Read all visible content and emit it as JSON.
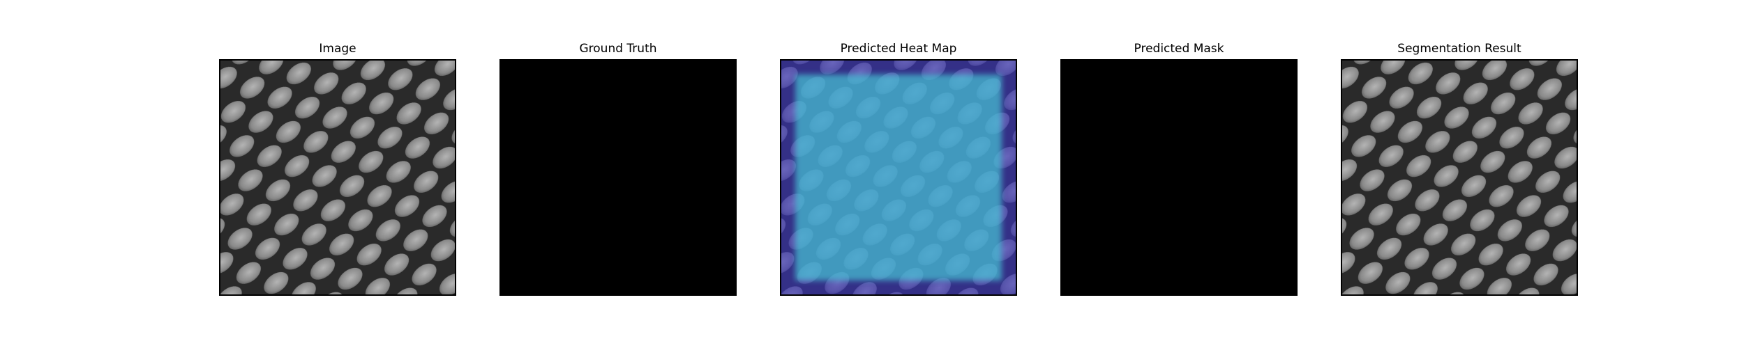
{
  "panels": [
    {
      "title": "Image",
      "content": "mesh-texture-grayscale"
    },
    {
      "title": "Ground Truth",
      "content": "empty-mask"
    },
    {
      "title": "Predicted Heat Map",
      "content": "mesh-texture-heatmap-overlay"
    },
    {
      "title": "Predicted Mask",
      "content": "empty-mask"
    },
    {
      "title": "Segmentation Result",
      "content": "mesh-texture-grayscale"
    }
  ],
  "colors": {
    "background": "#ffffff",
    "mask": "#000000",
    "mesh_cell": "#8e8e8e",
    "mesh_grid": "#2a2a2a",
    "heatmap_low": "#3a34c0",
    "heatmap_high": "#46c6d6"
  }
}
